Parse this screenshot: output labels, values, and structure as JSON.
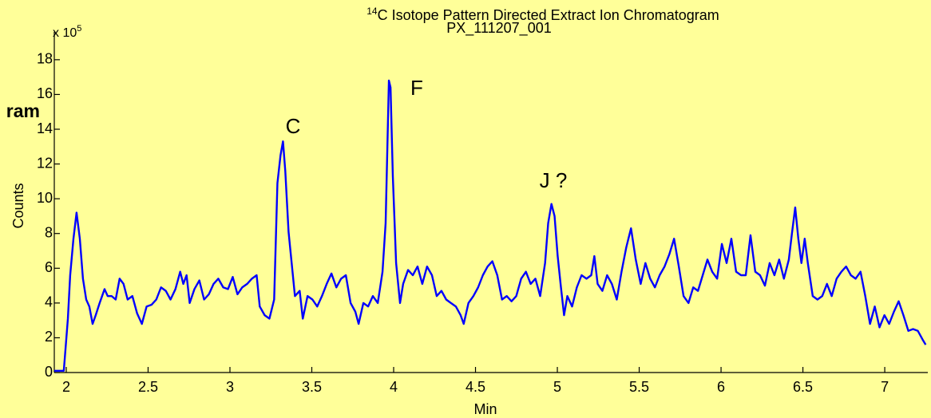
{
  "chart_data": {
    "type": "line",
    "title_superscript": "14",
    "title": "C Isotope Pattern Directed Extract Ion Chromatogram",
    "subtitle": "PX_111207_001",
    "clipped_label": "ram",
    "y_multiplier": "x 10",
    "y_multiplier_exponent": "5",
    "y_label": "Counts",
    "x_label": "Min",
    "annotations": [
      "C",
      "F",
      "J ?"
    ],
    "xlim": [
      1.927,
      7.263
    ],
    "ylim": [
      0,
      19.6
    ],
    "xticks": [
      2,
      2.5,
      3,
      3.5,
      4,
      4.5,
      5,
      5.5,
      6,
      6.5,
      7
    ],
    "yticks": [
      0,
      2,
      4,
      6,
      8,
      10,
      12,
      14,
      16,
      18
    ],
    "series": [
      {
        "color": "#0000ff",
        "x": [
          1.927,
          1.985,
          2.01,
          2.024,
          2.044,
          2.063,
          2.083,
          2.102,
          2.122,
          2.141,
          2.161,
          2.18,
          2.204,
          2.234,
          2.253,
          2.277,
          2.302,
          2.326,
          2.35,
          2.375,
          2.404,
          2.433,
          2.462,
          2.491,
          2.521,
          2.55,
          2.579,
          2.608,
          2.637,
          2.667,
          2.696,
          2.715,
          2.735,
          2.754,
          2.783,
          2.813,
          2.842,
          2.871,
          2.9,
          2.929,
          2.959,
          2.988,
          3.017,
          3.046,
          3.075,
          3.105,
          3.134,
          3.163,
          3.182,
          3.212,
          3.241,
          3.27,
          3.29,
          3.309,
          3.324,
          3.338,
          3.358,
          3.377,
          3.397,
          3.426,
          3.445,
          3.474,
          3.504,
          3.533,
          3.562,
          3.591,
          3.62,
          3.65,
          3.679,
          3.708,
          3.737,
          3.766,
          3.786,
          3.815,
          3.844,
          3.873,
          3.903,
          3.932,
          3.951,
          3.961,
          3.971,
          3.981,
          3.995,
          4.015,
          4.039,
          4.058,
          4.088,
          4.117,
          4.146,
          4.175,
          4.204,
          4.234,
          4.263,
          4.292,
          4.321,
          4.35,
          4.38,
          4.409,
          4.428,
          4.457,
          4.487,
          4.516,
          4.545,
          4.574,
          4.603,
          4.633,
          4.662,
          4.691,
          4.72,
          4.749,
          4.779,
          4.808,
          4.837,
          4.866,
          4.895,
          4.925,
          4.944,
          4.964,
          4.983,
          5.002,
          5.022,
          5.041,
          5.061,
          5.09,
          5.119,
          5.148,
          5.178,
          5.207,
          5.226,
          5.246,
          5.275,
          5.304,
          5.333,
          5.363,
          5.392,
          5.421,
          5.45,
          5.479,
          5.509,
          5.538,
          5.567,
          5.596,
          5.625,
          5.655,
          5.684,
          5.713,
          5.742,
          5.771,
          5.801,
          5.83,
          5.859,
          5.888,
          5.917,
          5.946,
          5.976,
          6.005,
          6.034,
          6.063,
          6.092,
          6.122,
          6.151,
          6.18,
          6.209,
          6.238,
          6.268,
          6.297,
          6.326,
          6.355,
          6.384,
          6.414,
          6.433,
          6.453,
          6.472,
          6.491,
          6.511,
          6.53,
          6.56,
          6.589,
          6.618,
          6.647,
          6.676,
          6.706,
          6.735,
          6.764,
          6.793,
          6.822,
          6.852,
          6.881,
          6.91,
          6.939,
          6.968,
          6.998,
          7.027,
          7.056,
          7.085,
          7.114,
          7.144,
          7.173,
          7.202,
          7.231,
          7.25
        ],
        "values": [
          0.1,
          0.1,
          3.1,
          5.6,
          7.7,
          9.2,
          7.7,
          5.4,
          4.2,
          3.8,
          2.8,
          3.3,
          4.0,
          4.8,
          4.4,
          4.4,
          4.2,
          5.4,
          5.1,
          4.2,
          4.4,
          3.4,
          2.8,
          3.8,
          3.9,
          4.2,
          4.9,
          4.7,
          4.2,
          4.8,
          5.8,
          5.1,
          5.6,
          4.0,
          4.8,
          5.3,
          4.2,
          4.5,
          5.1,
          5.4,
          4.9,
          4.8,
          5.5,
          4.5,
          4.9,
          5.1,
          5.4,
          5.6,
          3.8,
          3.3,
          3.1,
          4.2,
          10.9,
          12.5,
          13.3,
          11.6,
          8.1,
          6.3,
          4.4,
          4.7,
          3.1,
          4.4,
          4.2,
          3.8,
          4.4,
          5.1,
          5.7,
          4.9,
          5.4,
          5.6,
          4.0,
          3.5,
          2.8,
          4.0,
          3.8,
          4.4,
          4.0,
          5.8,
          8.6,
          12.7,
          16.8,
          16.4,
          11.3,
          6.3,
          4.0,
          5.1,
          5.9,
          5.6,
          6.1,
          5.1,
          6.1,
          5.6,
          4.4,
          4.7,
          4.2,
          4.0,
          3.8,
          3.3,
          2.8,
          4.0,
          4.4,
          4.9,
          5.6,
          6.1,
          6.4,
          5.6,
          4.2,
          4.4,
          4.1,
          4.4,
          5.4,
          5.8,
          5.1,
          5.4,
          4.4,
          6.3,
          8.6,
          9.7,
          9.0,
          6.7,
          4.9,
          3.3,
          4.4,
          3.8,
          4.9,
          5.6,
          5.4,
          5.6,
          6.7,
          5.1,
          4.7,
          5.6,
          5.1,
          4.2,
          5.8,
          7.2,
          8.3,
          6.5,
          5.1,
          6.3,
          5.4,
          4.9,
          5.6,
          6.1,
          6.8,
          7.7,
          6.1,
          4.4,
          4.0,
          4.9,
          4.7,
          5.6,
          6.5,
          5.8,
          5.4,
          7.4,
          6.3,
          7.7,
          5.8,
          5.6,
          5.6,
          7.9,
          5.8,
          5.6,
          5.0,
          6.3,
          5.6,
          6.5,
          5.4,
          6.5,
          8.0,
          9.5,
          7.7,
          6.3,
          7.7,
          6.3,
          4.4,
          4.2,
          4.4,
          5.1,
          4.4,
          5.4,
          5.8,
          6.1,
          5.6,
          5.4,
          5.8,
          4.4,
          2.8,
          3.8,
          2.6,
          3.3,
          2.8,
          3.5,
          4.1,
          3.3,
          2.4,
          2.5,
          2.4,
          1.9,
          1.6
        ]
      }
    ]
  }
}
